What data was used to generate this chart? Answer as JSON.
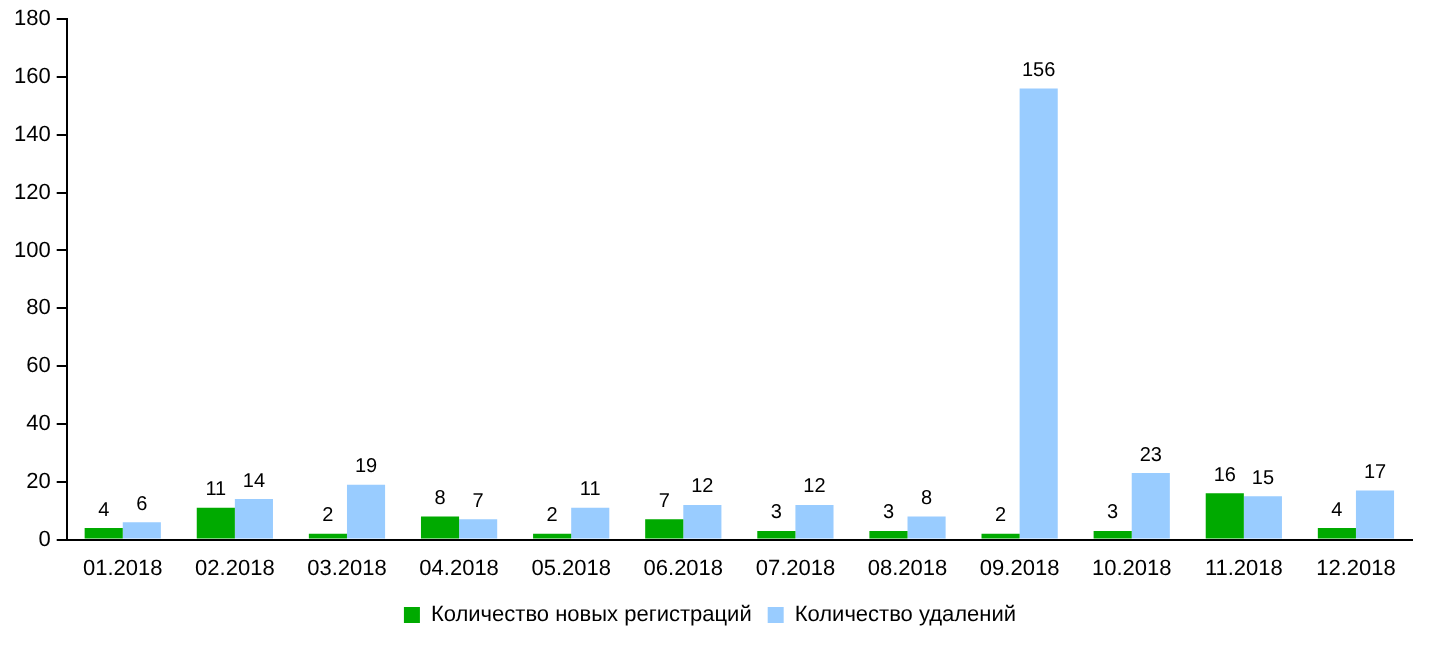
{
  "chart_data": {
    "type": "bar",
    "categories": [
      "01.2018",
      "02.2018",
      "03.2018",
      "04.2018",
      "05.2018",
      "06.2018",
      "07.2018",
      "08.2018",
      "09.2018",
      "10.2018",
      "11.2018",
      "12.2018"
    ],
    "series": [
      {
        "name": "Количество новых регистраций",
        "color": "#00aa00",
        "values": [
          4,
          11,
          2,
          8,
          2,
          7,
          3,
          3,
          2,
          3,
          16,
          4
        ]
      },
      {
        "name": "Количество удалений",
        "color": "#99ccff",
        "values": [
          6,
          14,
          19,
          7,
          11,
          12,
          12,
          8,
          156,
          23,
          15,
          17
        ]
      }
    ],
    "ylim": [
      0,
      180
    ],
    "yticks": [
      0,
      20,
      40,
      60,
      80,
      100,
      120,
      140,
      160,
      180
    ],
    "grid": false,
    "legend": "bottom",
    "data_labels": true
  }
}
